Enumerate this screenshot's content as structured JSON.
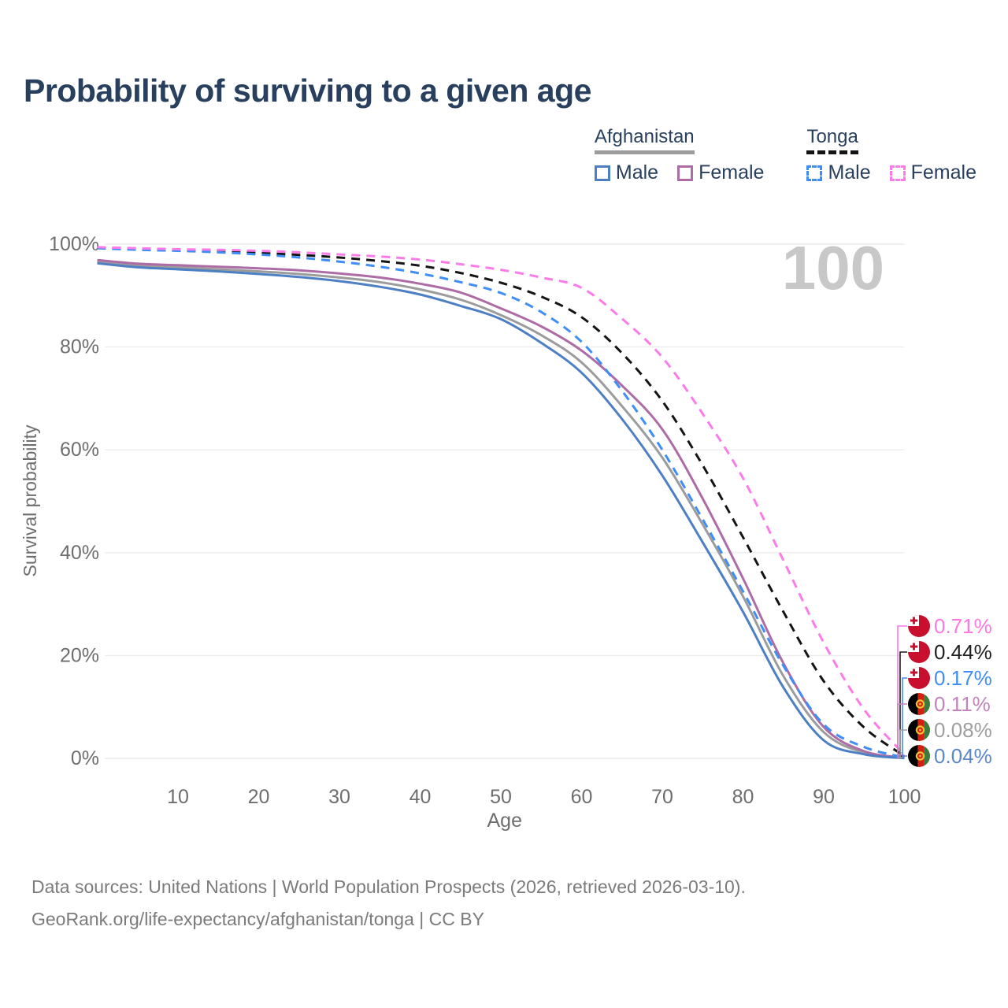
{
  "title": "Probability of surviving to a given age",
  "legend": {
    "groups": [
      {
        "country": "Afghanistan",
        "underline_style": "solid",
        "underline_color": "#9c9c9c",
        "items": [
          {
            "label": "Male",
            "color": "#4d7fc4",
            "dashed": false
          },
          {
            "label": "Female",
            "color": "#ad6ca6",
            "dashed": false
          }
        ]
      },
      {
        "country": "Tonga",
        "underline_style": "dashed",
        "underline_color": "#141414",
        "items": [
          {
            "label": "Male",
            "color": "#3f8ef5",
            "dashed": true
          },
          {
            "label": "Female",
            "color": "#fb7ce8",
            "dashed": true
          }
        ]
      }
    ]
  },
  "chart_data": {
    "type": "line",
    "title": "Probability of surviving to a given age",
    "xlabel": "Age",
    "ylabel": "Survival probability",
    "xlim": [
      0,
      100
    ],
    "ylim": [
      0,
      100
    ],
    "grid": true,
    "age_indicator": "100",
    "x_ticks": [
      10,
      20,
      30,
      40,
      50,
      60,
      70,
      80,
      90,
      100
    ],
    "y_ticks": [
      {
        "value": 100,
        "label": "100%"
      },
      {
        "value": 80,
        "label": "80%"
      },
      {
        "value": 60,
        "label": "60%"
      },
      {
        "value": 40,
        "label": "40%"
      },
      {
        "value": 20,
        "label": "20%"
      },
      {
        "value": 0,
        "label": "0%"
      }
    ],
    "x": [
      0,
      5,
      10,
      15,
      20,
      25,
      30,
      35,
      40,
      45,
      50,
      55,
      60,
      65,
      70,
      75,
      80,
      85,
      90,
      95,
      100
    ],
    "series": [
      {
        "id": "afghanistan-total",
        "name": "Afghanistan",
        "country": "Afghanistan",
        "sex": "Both",
        "color": "#9c9c9c",
        "dashed": false,
        "values": [
          96.6,
          95.8,
          95.5,
          95.1,
          94.7,
          94.2,
          93.5,
          92.6,
          91.2,
          89.2,
          86.2,
          82.3,
          77.0,
          68.5,
          58.5,
          45.5,
          31.5,
          16.0,
          5.1,
          1.1,
          0.08
        ],
        "end_label": "0.08%",
        "end_label_color": "#9e9e9e",
        "flag": "tonga_none_afghanistan",
        "label_row": 4
      },
      {
        "id": "afghanistan-female",
        "name": "Afghanistan Female",
        "country": "Afghanistan",
        "sex": "Female",
        "color": "#ad6ca6",
        "dashed": false,
        "values": [
          96.9,
          96.2,
          95.9,
          95.6,
          95.3,
          94.9,
          94.3,
          93.5,
          92.3,
          90.6,
          87.5,
          84.0,
          79.3,
          72.5,
          64.0,
          50.5,
          35.0,
          18.5,
          6.1,
          1.4,
          0.11
        ],
        "end_label": "0.11%",
        "end_label_color": "#c383bb",
        "flag": "afghanistan",
        "label_row": 3
      },
      {
        "id": "afghanistan-male",
        "name": "Afghanistan Male",
        "country": "Afghanistan",
        "sex": "Male",
        "color": "#4d7fc4",
        "dashed": false,
        "values": [
          96.3,
          95.5,
          95.1,
          94.7,
          94.2,
          93.6,
          92.8,
          91.7,
          90.2,
          88.0,
          85.4,
          80.8,
          75.0,
          66.0,
          55.0,
          42.0,
          28.5,
          13.8,
          3.5,
          0.8,
          0.04
        ],
        "end_label": "0.04%",
        "end_label_color": "#5b87c9",
        "flag": "afghanistan",
        "label_row": 5
      },
      {
        "id": "tonga-total",
        "name": "Tonga",
        "country": "Tonga",
        "sex": "Both",
        "color": "#141414",
        "dashed": true,
        "values": [
          99.3,
          99.05,
          98.85,
          98.6,
          98.3,
          97.9,
          97.4,
          96.7,
          95.8,
          94.4,
          92.5,
          89.8,
          85.8,
          78.8,
          69.5,
          57.0,
          43.0,
          28.5,
          15.0,
          6.0,
          0.44
        ],
        "end_label": "0.44%",
        "end_label_color": "#1f1f1f",
        "flag": "tonga",
        "label_row": 1
      },
      {
        "id": "tonga-male",
        "name": "Tonga Male",
        "country": "Tonga",
        "sex": "Male",
        "color": "#3f8ef5",
        "dashed": true,
        "values": [
          99.2,
          98.9,
          98.7,
          98.4,
          98.0,
          97.4,
          96.6,
          95.6,
          94.3,
          92.6,
          90.5,
          86.8,
          81.0,
          71.5,
          60.0,
          46.5,
          32.5,
          18.0,
          6.6,
          2.2,
          0.17
        ],
        "end_label": "0.17%",
        "end_label_color": "#3f8ef5",
        "flag": "tonga",
        "label_row": 2
      },
      {
        "id": "tonga-female",
        "name": "Tonga Female",
        "country": "Tonga",
        "sex": "Female",
        "color": "#fb7ce8",
        "dashed": true,
        "values": [
          99.4,
          99.2,
          99.0,
          98.9,
          98.7,
          98.4,
          98.0,
          97.6,
          97.0,
          96.1,
          95.0,
          93.5,
          91.5,
          85.5,
          78.0,
          67.0,
          54.5,
          38.5,
          22.5,
          9.5,
          0.71
        ],
        "end_label": "0.71%",
        "end_label_color": "#ff77e3",
        "flag": "tonga",
        "label_row": 0
      }
    ]
  },
  "footer": {
    "line1": "Data sources: United Nations | World Population Prospects (2026, retrieved 2026-03-10).",
    "line2": "GeoRank.org/life-expectancy/afghanistan/tonga | CC BY"
  }
}
